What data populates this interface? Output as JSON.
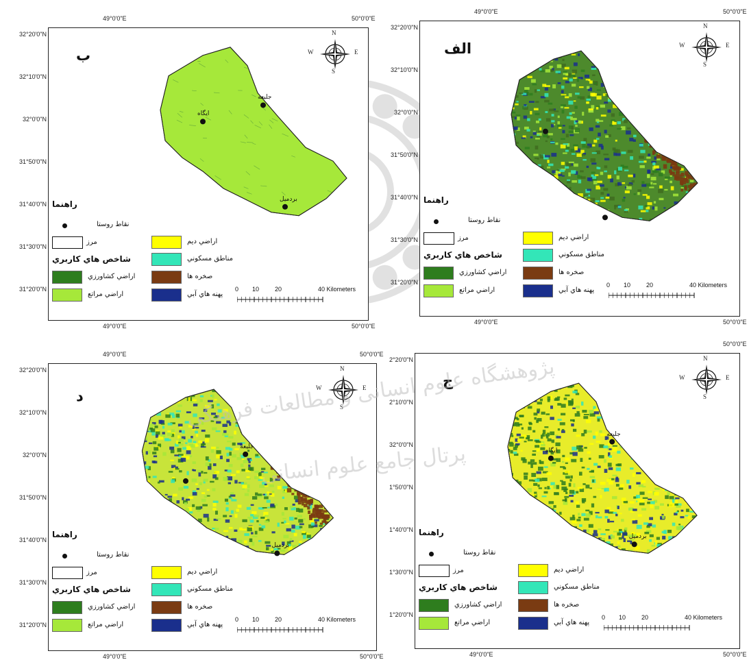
{
  "panels": [
    {
      "id": "b",
      "label": "ب",
      "lon_top_left": "49°0'0\"E",
      "lon_top_right": "50°0'0\"E",
      "lon_bottom_left": "49°0'0\"E",
      "lon_bottom_right": "50°0'0\"E",
      "lat_labels": [
        "32°20'0\"N",
        "32°10'0\"N",
        "32°0'0\"N",
        "31°50'0\"N",
        "31°40'0\"N",
        "31°30'0\"N",
        "31°20'0\"N"
      ],
      "towns": [
        "جليعه",
        "ايگاه",
        "بردميل"
      ],
      "map_style": "range"
    },
    {
      "id": "alef",
      "label": "الف",
      "lon_top_left": "49°0'0\"E",
      "lon_top_right": "50°0'0\"E",
      "lon_bottom_left": "49°0'0\"E",
      "lon_bottom_right": "50°0'0\"E",
      "lat_labels": [
        "32°20'0\"N",
        "32°10'0\"N",
        "32°0'0\"N",
        "31°50'0\"N",
        "31°40'0\"N",
        "31°30'0\"N",
        "31°20'0\"N"
      ],
      "towns": [],
      "map_style": "mixed_dark"
    },
    {
      "id": "d",
      "label": "د",
      "lon_top_left": "49°0'0\"E",
      "lon_top_right": "50°0'0\"E",
      "lon_bottom_left": "49°0'0\"E",
      "lon_bottom_right": "50°0'0\"E",
      "lat_labels": [
        "32°20'0\"N",
        "32°10'0\"N",
        "32°0'0\"N",
        "31°50'0\"N",
        "31°40'0\"N",
        "31°30'0\"N",
        "31°20'0\"N"
      ],
      "towns": [
        "جليعه",
        "بردميل"
      ],
      "map_style": "mixed_bright"
    },
    {
      "id": "j",
      "label": "ج",
      "lon_top_left": "",
      "lon_top_right": "50°0'0\"E",
      "lon_bottom_left": "49°0'0\"E",
      "lon_bottom_right": "50°0'0\"E",
      "lat_labels": [
        "2°20'0\"N",
        "2°10'0\"N",
        "32°0'0\"N",
        "1°50'0\"N",
        "1°40'0\"N",
        "1°30'0\"N",
        "1°20'0\"N"
      ],
      "towns": [
        "جليعه",
        "ايگاه",
        "بردميل"
      ],
      "map_style": "mixed_yellow"
    }
  ],
  "legend": {
    "title": "راهنما",
    "village_points": "نقاط روستا",
    "boundary": "مرز",
    "index_title": "شاخص هاي کاربري",
    "classes": [
      {
        "label": "اراضي کشاورزي",
        "color": "#2e7d1e"
      },
      {
        "label": "اراضي مراتع",
        "color": "#a6e83a"
      },
      {
        "label": "اراضي ديم",
        "color": "#ffff00"
      },
      {
        "label": "مناطق مسکوني",
        "color": "#33e6b8"
      },
      {
        "label": "صخره ها",
        "color": "#7a3b12"
      },
      {
        "label": "پهنه هاي آبي",
        "color": "#1a2f8c"
      }
    ]
  },
  "north_arrow": {
    "n": "N",
    "s": "S",
    "e": "E",
    "w": "W"
  },
  "scale": {
    "ticks": [
      "0",
      "10",
      "20",
      "40 Kilometers"
    ]
  },
  "watermark": {
    "line1": "پژوهشگاه علوم انسانی و مطالعات فرهنگی",
    "line2": "پرتال جامع علوم انسانی"
  },
  "colors": {
    "agriculture": "#2e7d1e",
    "rangeland": "#a6e83a",
    "dryland": "#ffff00",
    "residential": "#33e6b8",
    "rocks": "#7a3b12",
    "water": "#1a2f8c"
  }
}
